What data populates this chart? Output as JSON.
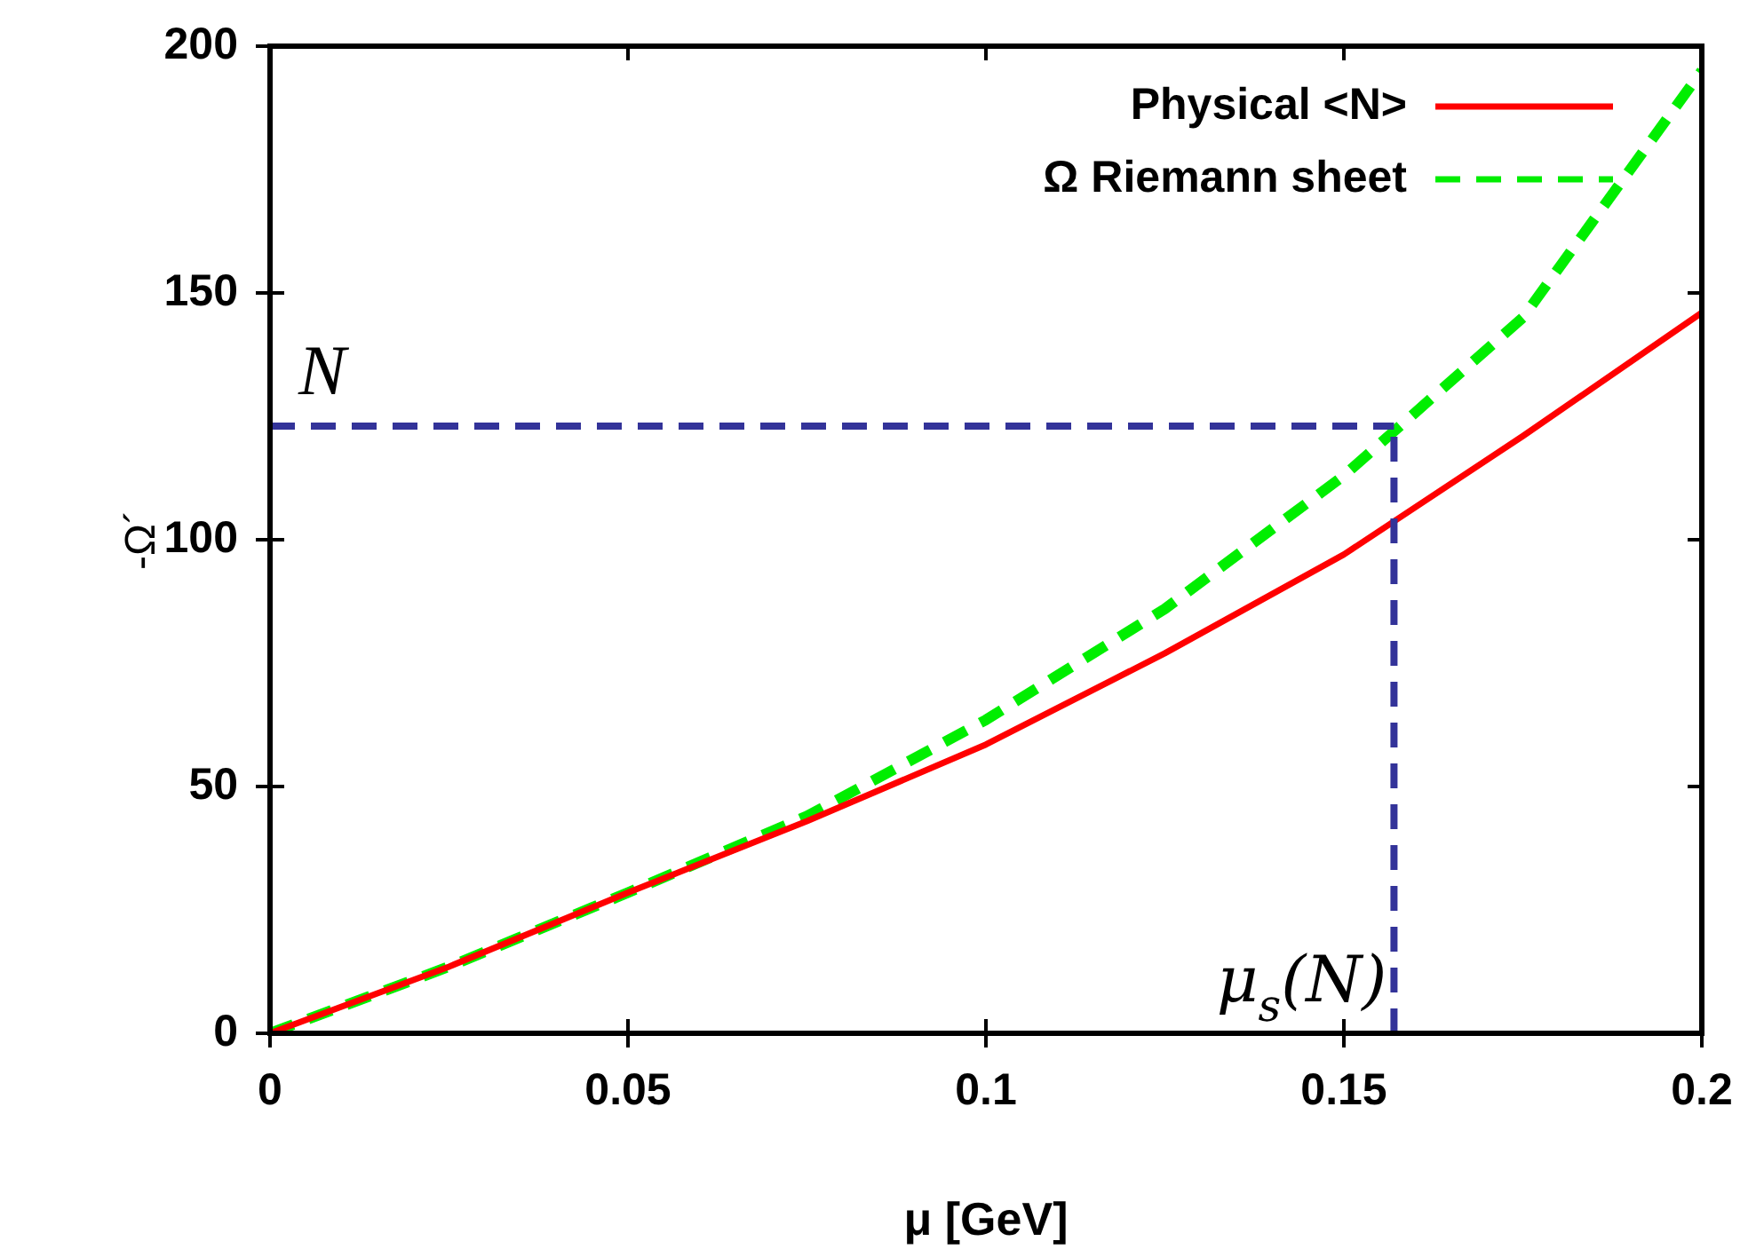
{
  "chart_data": {
    "type": "line",
    "xlabel": "μ [GeV]",
    "ylabel": "-Ω´",
    "x": [
      0,
      0.025,
      0.05,
      0.075,
      0.1,
      0.125,
      0.15,
      0.175,
      0.2
    ],
    "series": [
      {
        "name": "Physical <N>",
        "color": "#ff0000",
        "line_style": "solid",
        "values": [
          0,
          13.5,
          28.5,
          43,
          58.5,
          77,
          97,
          121,
          146
        ]
      },
      {
        "name": "Ω Riemann sheet",
        "color": "#00ee00",
        "line_style": "dashed",
        "values": [
          0,
          13.5,
          28.5,
          44,
          63.5,
          86,
          113,
          145,
          195
        ]
      }
    ],
    "xlim": [
      0,
      0.2
    ],
    "xticks": [
      0,
      0.05,
      0.1,
      0.15,
      0.2
    ],
    "ylim": [
      0,
      200
    ],
    "yticks": [
      0,
      50,
      100,
      150,
      200
    ],
    "ref_lines": [
      {
        "axis": "y",
        "value": 123,
        "label": "N",
        "color": "#333399",
        "line_style": "dashed"
      },
      {
        "axis": "x",
        "value": 0.157,
        "label": "μ$_{s}$(N)",
        "color": "#333399",
        "line_style": "dashed"
      }
    ],
    "legend": "top right",
    "marker": "none"
  }
}
